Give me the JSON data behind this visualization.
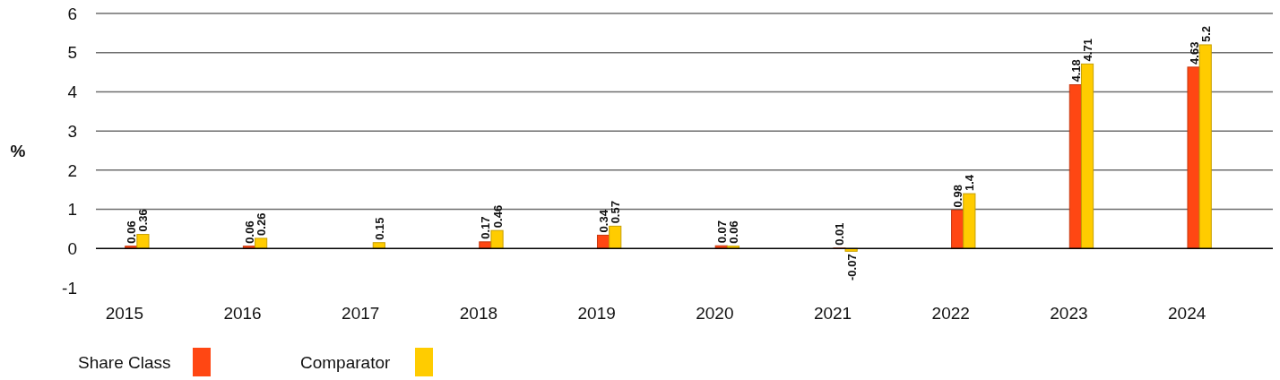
{
  "chart_data": {
    "type": "bar",
    "ylabel": "%",
    "categories": [
      "2015",
      "2016",
      "2017",
      "2018",
      "2019",
      "2020",
      "2021",
      "2022",
      "2023",
      "2024"
    ],
    "series": [
      {
        "name": "Share Class",
        "color": "#ff4713",
        "values": [
          0.06,
          0.06,
          null,
          0.17,
          0.34,
          0.07,
          0.01,
          0.98,
          4.18,
          4.63
        ]
      },
      {
        "name": "Comparator",
        "color": "#ffcc00",
        "values": [
          0.36,
          0.26,
          0.15,
          0.46,
          0.57,
          0.06,
          -0.07,
          1.4,
          4.71,
          5.2
        ]
      }
    ],
    "ylim": [
      -1,
      6
    ],
    "yticks": [
      -1,
      0,
      1,
      2,
      3,
      4,
      5,
      6
    ],
    "grid": "y",
    "legend": "bottom left",
    "data_labels": true
  }
}
